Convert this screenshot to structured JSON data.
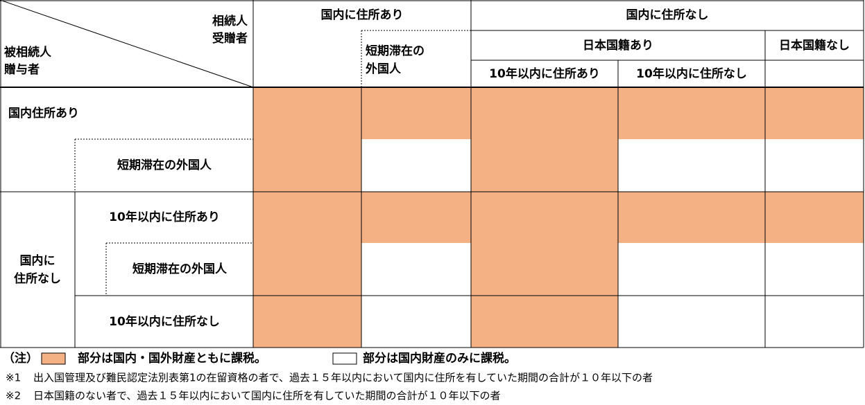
{
  "table": {
    "corner": {
      "recipient": [
        "相続人",
        "受贈者"
      ],
      "decedent": [
        "被相続人",
        "贈与者"
      ]
    },
    "col_groups": [
      "国内に住所あり",
      "国内に住所なし"
    ],
    "col_short_stay": [
      "短期滞在の",
      "外国人"
    ],
    "sub_groups": [
      "日本国籍あり",
      "日本国籍なし"
    ],
    "col_leaves": [
      "10年以内に住所あり",
      "10年以内に住所なし"
    ],
    "row_group_1": "国内住所あり",
    "row_group_2": [
      "国内に",
      "住所なし"
    ],
    "rows": [
      {
        "fills": [
          "#f4b183",
          "#f4b183",
          "#f4b183",
          "#f4b183",
          "#f4b183"
        ]
      },
      {
        "label": "短期滞在の外国人",
        "fills": [
          "#f4b183",
          "#ffffff",
          "#f4b183",
          "#ffffff",
          "#ffffff"
        ]
      },
      {
        "label": "10年以内に住所あり",
        "fills": [
          "#f4b183",
          "#f4b183",
          "#f4b183",
          "#f4b183",
          "#f4b183"
        ]
      },
      {
        "label": "短期滞在の外国人",
        "fills": [
          "#f4b183",
          "#ffffff",
          "#f4b183",
          "#ffffff",
          "#ffffff"
        ]
      },
      {
        "label": "10年以内に住所なし",
        "fills": [
          "#f4b183",
          "#ffffff",
          "#f4b183",
          "#ffffff",
          "#ffffff"
        ]
      }
    ]
  },
  "legend": {
    "prefix": "（注）",
    "taxed_color": "#f4b183",
    "taxed_text": "部分は国内・国外財産ともに課税。",
    "untaxed_color": "#ffffff",
    "untaxed_text": "部分は国内財産のみに課税。"
  },
  "notes": [
    {
      "mark": "※1",
      "text": "出入国管理及び難民認定法別表第1の在留資格の者で、過去１５年以内において国内に住所を有していた期間の合計が１０年以下の者"
    },
    {
      "mark": "※2",
      "text": "日本国籍のない者で、過去１５年以内において国内に住所を有していた期間の合計が１０年以下の者"
    }
  ]
}
